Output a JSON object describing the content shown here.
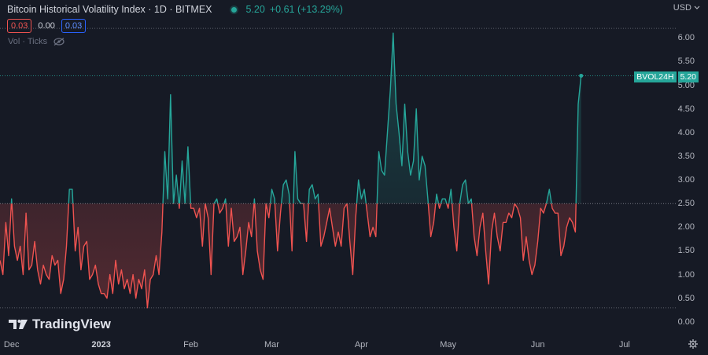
{
  "header": {
    "title": "Bitcoin Historical Volatility Index · 1D · BITMEX",
    "last_value": "5.20",
    "change": "+0.61 (+13.29%)"
  },
  "ohlc": {
    "left": "0.03",
    "mid": "0.00",
    "right": "0.03"
  },
  "volume": {
    "label": "Vol · Ticks"
  },
  "currency": "USD",
  "last_badge": {
    "symbol": "BVOL24H",
    "value": "5.20"
  },
  "watermark": "TradingView",
  "colors": {
    "up": "#26a69a",
    "down": "#ef5350",
    "background": "#161a25",
    "grid": "#2a2e39"
  },
  "chart_data": {
    "type": "line",
    "title": "Bitcoin Historical Volatility Index · 1D · BITMEX",
    "baseline": 2.5,
    "high_line": 6.2,
    "low_line": 0.3,
    "ylim": [
      -0.3,
      6.8
    ],
    "y_ticks": [
      "6.00",
      "5.50",
      "5.00",
      "4.50",
      "4.00",
      "3.50",
      "3.00",
      "2.50",
      "2.00",
      "1.50",
      "1.00",
      "0.50",
      "0.00"
    ],
    "x_ticks": [
      "Dec",
      "2023",
      "Feb",
      "Mar",
      "Apr",
      "May",
      "Jun",
      "Jul"
    ],
    "x_tick_days": [
      0,
      31,
      62,
      90,
      121,
      151,
      182,
      212
    ],
    "xlim": [
      -4,
      230
    ],
    "x_start_date": "2022-12-01",
    "x_unit": "days since 2022-12-01",
    "series": [
      {
        "name": "BVOL24H",
        "x_start": -4,
        "values": [
          1.3,
          1.0,
          2.1,
          1.4,
          2.6,
          1.6,
          1.3,
          1.6,
          1.0,
          2.3,
          1.1,
          1.2,
          1.7,
          1.1,
          0.8,
          1.2,
          1.0,
          0.9,
          1.4,
          1.2,
          1.3,
          0.6,
          0.9,
          1.6,
          2.8,
          2.8,
          1.5,
          2.0,
          1.1,
          1.6,
          1.7,
          0.9,
          1.0,
          1.2,
          0.8,
          0.6,
          0.6,
          0.5,
          1.0,
          0.6,
          1.3,
          0.8,
          1.1,
          0.7,
          0.9,
          0.6,
          1.0,
          0.5,
          0.9,
          0.7,
          1.1,
          0.3,
          0.9,
          1.0,
          1.4,
          1.0,
          1.9,
          3.6,
          2.6,
          4.8,
          2.5,
          3.1,
          2.4,
          3.4,
          2.5,
          3.7,
          2.4,
          2.4,
          2.2,
          2.4,
          1.6,
          2.5,
          2.2,
          1.0,
          2.5,
          2.6,
          2.3,
          2.4,
          2.6,
          1.6,
          2.4,
          1.7,
          1.8,
          2.0,
          1.0,
          1.5,
          2.1,
          1.8,
          2.6,
          1.5,
          1.1,
          0.9,
          2.5,
          2.2,
          2.8,
          2.6,
          1.5,
          2.3,
          2.9,
          3.0,
          2.7,
          1.5,
          3.6,
          2.6,
          2.5,
          2.5,
          1.7,
          2.8,
          2.9,
          2.6,
          2.7,
          1.6,
          1.8,
          2.1,
          2.4,
          2.0,
          1.6,
          1.9,
          1.6,
          2.4,
          2.5,
          1.7,
          1.0,
          2.2,
          3.0,
          2.6,
          2.8,
          2.3,
          1.8,
          2.0,
          1.8,
          3.6,
          3.2,
          3.1,
          4.0,
          4.9,
          6.1,
          4.6,
          4.0,
          3.3,
          4.6,
          3.6,
          3.1,
          3.4,
          4.5,
          3.0,
          3.5,
          3.3,
          2.6,
          1.8,
          2.1,
          2.7,
          2.4,
          2.6,
          2.6,
          2.4,
          2.8,
          2.0,
          1.5,
          2.5,
          2.9,
          3.0,
          2.5,
          2.6,
          1.8,
          1.4,
          2.0,
          2.3,
          1.5,
          0.8,
          1.9,
          2.3,
          1.8,
          1.5,
          2.1,
          2.1,
          2.3,
          2.2,
          2.5,
          2.4,
          2.2,
          1.3,
          1.8,
          1.3,
          1.0,
          1.2,
          1.7,
          2.4,
          2.3,
          2.5,
          2.8,
          2.4,
          2.3,
          2.3,
          1.4,
          1.6,
          2.0,
          2.2,
          2.1,
          1.9,
          4.6,
          5.2
        ]
      }
    ]
  }
}
